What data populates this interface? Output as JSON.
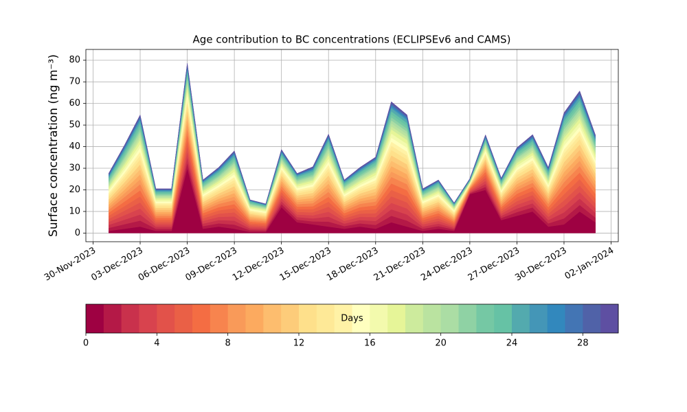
{
  "chart_data": {
    "type": "stacked_area",
    "title": "Age contribution to BC concentrations (ECLIPSEv6 and CAMS)",
    "y_label": "Surface concentration (ng m⁻³)",
    "x": [
      "2023-12-01",
      "2023-12-02",
      "2023-12-03",
      "2023-12-04",
      "2023-12-05",
      "2023-12-06",
      "2023-12-07",
      "2023-12-08",
      "2023-12-09",
      "2023-12-10",
      "2023-12-11",
      "2023-12-12",
      "2023-12-13",
      "2023-12-14",
      "2023-12-15",
      "2023-12-16",
      "2023-12-17",
      "2023-12-18",
      "2023-12-19",
      "2023-12-20",
      "2023-12-21",
      "2023-12-22",
      "2023-12-23",
      "2023-12-24",
      "2023-12-25",
      "2023-12-26",
      "2023-12-27",
      "2023-12-28",
      "2023-12-29",
      "2023-12-30",
      "2023-12-31",
      "2024-01-01"
    ],
    "xlim": [
      "2023-11-29T13:00",
      "2024-01-02T11:00"
    ],
    "xticks": [
      {
        "value": "2023-11-30",
        "label": "30-Nov-2023"
      },
      {
        "value": "2023-12-03",
        "label": "03-Dec-2023"
      },
      {
        "value": "2023-12-06",
        "label": "06-Dec-2023"
      },
      {
        "value": "2023-12-09",
        "label": "09-Dec-2023"
      },
      {
        "value": "2023-12-12",
        "label": "12-Dec-2023"
      },
      {
        "value": "2023-12-15",
        "label": "15-Dec-2023"
      },
      {
        "value": "2023-12-18",
        "label": "18-Dec-2023"
      },
      {
        "value": "2023-12-21",
        "label": "21-Dec-2023"
      },
      {
        "value": "2023-12-24",
        "label": "24-Dec-2023"
      },
      {
        "value": "2023-12-27",
        "label": "27-Dec-2023"
      },
      {
        "value": "2023-12-30",
        "label": "30-Dec-2023"
      },
      {
        "value": "2024-01-02",
        "label": "02-Jan-2024"
      }
    ],
    "ylim": [
      -4,
      85
    ],
    "yticks": [
      0,
      10,
      20,
      30,
      40,
      50,
      60,
      70,
      80
    ],
    "grid": true,
    "series": [
      {
        "color": "#9e0142",
        "values": [
          1,
          2,
          3,
          1,
          1,
          30,
          2,
          3,
          2,
          0.5,
          0.5,
          12,
          5,
          4,
          3,
          2,
          3,
          2,
          5,
          3,
          1,
          2,
          1,
          18,
          20,
          6,
          8,
          10,
          3,
          4,
          10,
          5
        ]
      },
      {
        "color": "#b41947",
        "values": [
          1.4,
          2.1,
          2.8,
          1.0,
          1.0,
          2.6,
          1.2,
          1.5,
          1.9,
          0.8,
          0.7,
          1.4,
          1.2,
          1.4,
          2.3,
          1.2,
          1.5,
          1.8,
          3.0,
          2.8,
          1.0,
          1.2,
          0.7,
          0.4,
          1.4,
          1.0,
          1.7,
          1.9,
          1.5,
          2.8,
          3.0,
          2.2
        ]
      },
      {
        "color": "#c9314c",
        "values": [
          1.4,
          2.1,
          2.8,
          1.0,
          1.0,
          2.6,
          1.2,
          1.5,
          1.9,
          0.8,
          0.7,
          1.4,
          1.2,
          1.4,
          2.3,
          1.2,
          1.5,
          1.8,
          3.0,
          2.8,
          1.0,
          1.2,
          0.7,
          0.4,
          1.4,
          1.0,
          1.7,
          1.9,
          1.5,
          2.8,
          3.0,
          2.2
        ]
      },
      {
        "color": "#d8434e",
        "values": [
          1.4,
          2.1,
          2.8,
          1.0,
          1.0,
          2.6,
          1.2,
          1.5,
          1.9,
          0.8,
          0.7,
          1.4,
          1.2,
          1.4,
          2.3,
          1.2,
          1.5,
          1.8,
          3.0,
          2.8,
          1.0,
          1.2,
          0.7,
          0.4,
          1.4,
          1.0,
          1.7,
          1.9,
          1.5,
          2.8,
          3.0,
          2.2
        ]
      },
      {
        "color": "#e2524a",
        "values": [
          1.4,
          2.1,
          2.8,
          1.0,
          1.0,
          2.6,
          1.2,
          1.5,
          1.9,
          0.8,
          0.7,
          1.4,
          1.2,
          1.4,
          2.3,
          1.2,
          1.5,
          1.8,
          3.0,
          2.8,
          1.0,
          1.2,
          0.7,
          0.4,
          1.4,
          1.0,
          1.7,
          1.9,
          1.5,
          2.8,
          3.0,
          2.2
        ]
      },
      {
        "color": "#ea6046",
        "values": [
          1.4,
          2.1,
          2.8,
          1.0,
          1.0,
          2.6,
          1.2,
          1.5,
          1.9,
          0.8,
          0.7,
          1.4,
          1.2,
          1.4,
          2.3,
          1.2,
          1.5,
          1.8,
          3.0,
          2.8,
          1.0,
          1.2,
          0.7,
          0.4,
          1.4,
          1.0,
          1.7,
          1.9,
          1.5,
          2.8,
          3.0,
          2.2
        ]
      },
      {
        "color": "#f46d43",
        "values": [
          1.4,
          2.1,
          2.8,
          1.0,
          1.0,
          2.6,
          1.2,
          1.5,
          1.9,
          0.8,
          0.7,
          1.4,
          1.2,
          1.4,
          2.3,
          1.2,
          1.5,
          1.8,
          3.0,
          2.8,
          1.0,
          1.2,
          0.7,
          0.4,
          1.4,
          1.0,
          1.7,
          1.9,
          1.5,
          2.8,
          3.0,
          2.2
        ]
      },
      {
        "color": "#f7844e",
        "values": [
          1.4,
          2.1,
          2.8,
          1.0,
          1.0,
          2.6,
          1.2,
          1.5,
          1.9,
          0.8,
          0.7,
          1.4,
          1.2,
          1.4,
          2.3,
          1.2,
          1.5,
          1.8,
          3.0,
          2.8,
          1.0,
          1.2,
          0.7,
          0.4,
          1.4,
          1.0,
          1.7,
          1.9,
          1.5,
          2.8,
          3.0,
          2.2
        ]
      },
      {
        "color": "#f99a59",
        "values": [
          1.2,
          1.7,
          2.3,
          0.9,
          0.9,
          2.2,
          1.0,
          1.2,
          1.6,
          0.7,
          0.6,
          1.2,
          1.0,
          1.2,
          1.9,
          1.0,
          1.2,
          1.5,
          2.5,
          2.3,
          0.9,
          1.0,
          0.6,
          0.3,
          1.1,
          0.9,
          1.4,
          1.6,
          1.2,
          2.3,
          2.5,
          1.8
        ]
      },
      {
        "color": "#fcaa5f",
        "values": [
          1.2,
          1.7,
          2.3,
          0.9,
          0.9,
          2.2,
          1.0,
          1.2,
          1.6,
          0.7,
          0.6,
          1.2,
          1.0,
          1.2,
          1.9,
          1.0,
          1.2,
          1.5,
          2.5,
          2.3,
          0.9,
          1.0,
          0.6,
          0.3,
          1.1,
          0.9,
          1.4,
          1.6,
          1.2,
          2.3,
          2.5,
          1.8
        ]
      },
      {
        "color": "#fdbd6e",
        "values": [
          1.2,
          1.7,
          2.3,
          0.9,
          0.9,
          2.2,
          1.0,
          1.2,
          1.6,
          0.7,
          0.6,
          1.2,
          1.0,
          1.2,
          1.9,
          1.0,
          1.2,
          1.5,
          2.5,
          2.3,
          0.9,
          1.0,
          0.6,
          0.3,
          1.1,
          0.9,
          1.4,
          1.6,
          1.2,
          2.3,
          2.5,
          1.8
        ]
      },
      {
        "color": "#fdcc7a",
        "values": [
          1.2,
          1.7,
          2.3,
          0.9,
          0.9,
          2.2,
          1.0,
          1.2,
          1.6,
          0.7,
          0.6,
          1.2,
          1.0,
          1.2,
          1.9,
          1.0,
          1.2,
          1.5,
          2.5,
          2.3,
          0.9,
          1.0,
          0.6,
          0.3,
          1.1,
          0.9,
          1.4,
          1.6,
          1.2,
          2.3,
          2.5,
          1.8
        ]
      },
      {
        "color": "#fee08b",
        "values": [
          1.2,
          1.7,
          2.3,
          0.9,
          0.9,
          2.2,
          1.0,
          1.2,
          1.6,
          0.7,
          0.6,
          1.2,
          1.0,
          1.2,
          1.9,
          1.0,
          1.2,
          1.5,
          2.5,
          2.3,
          0.9,
          1.0,
          0.6,
          0.3,
          1.1,
          0.9,
          1.4,
          1.6,
          1.2,
          2.3,
          2.5,
          1.8
        ]
      },
      {
        "color": "#fee997",
        "values": [
          0.9,
          1.3,
          1.8,
          0.7,
          0.7,
          1.7,
          0.8,
          0.9,
          1.3,
          0.5,
          0.5,
          0.9,
          0.8,
          0.9,
          1.5,
          0.8,
          0.9,
          1.2,
          1.9,
          1.8,
          0.7,
          0.8,
          0.5,
          0.2,
          0.9,
          0.7,
          1.1,
          1.2,
          0.9,
          1.8,
          1.9,
          1.4
        ]
      },
      {
        "color": "#fff2a6",
        "values": [
          0.9,
          1.3,
          1.8,
          0.7,
          0.7,
          1.7,
          0.8,
          0.9,
          1.3,
          0.5,
          0.5,
          0.9,
          0.8,
          0.9,
          1.5,
          0.8,
          0.9,
          1.2,
          1.9,
          1.8,
          0.7,
          0.8,
          0.5,
          0.2,
          0.9,
          0.7,
          1.1,
          1.2,
          0.9,
          1.8,
          1.9,
          1.4
        ]
      },
      {
        "color": "#ffffbf",
        "values": [
          0.9,
          1.3,
          1.8,
          0.7,
          0.7,
          1.7,
          0.8,
          0.9,
          1.3,
          0.5,
          0.5,
          0.9,
          0.8,
          0.9,
          1.5,
          0.8,
          0.9,
          1.2,
          1.9,
          1.8,
          0.7,
          0.8,
          0.5,
          0.2,
          0.9,
          0.7,
          1.1,
          1.2,
          0.9,
          1.8,
          1.9,
          1.4
        ]
      },
      {
        "color": "#f3faad",
        "values": [
          0.9,
          1.3,
          1.8,
          0.7,
          0.7,
          1.7,
          0.8,
          0.9,
          1.3,
          0.5,
          0.5,
          0.9,
          0.8,
          0.9,
          1.5,
          0.8,
          0.9,
          1.2,
          1.9,
          1.8,
          0.7,
          0.8,
          0.5,
          0.2,
          0.9,
          0.7,
          1.1,
          1.2,
          0.9,
          1.8,
          1.9,
          1.4
        ]
      },
      {
        "color": "#e6f598",
        "values": [
          0.9,
          1.3,
          1.8,
          0.7,
          0.7,
          1.7,
          0.8,
          0.9,
          1.3,
          0.5,
          0.5,
          0.9,
          0.8,
          0.9,
          1.5,
          0.8,
          0.9,
          1.2,
          1.9,
          1.8,
          0.7,
          0.8,
          0.5,
          0.2,
          0.9,
          0.7,
          1.1,
          1.2,
          0.9,
          1.8,
          1.9,
          1.4
        ]
      },
      {
        "color": "#cdeb9d",
        "values": [
          0.7,
          1.0,
          1.3,
          0.5,
          0.5,
          1.2,
          0.6,
          0.7,
          0.9,
          0.4,
          0.3,
          0.7,
          0.6,
          0.7,
          1.1,
          0.6,
          0.7,
          0.8,
          1.4,
          1.3,
          0.5,
          0.6,
          0.3,
          0.2,
          0.6,
          0.5,
          0.8,
          0.9,
          0.7,
          1.3,
          1.4,
          1.0
        ]
      },
      {
        "color": "#bae3a0",
        "values": [
          0.7,
          1.0,
          1.3,
          0.5,
          0.5,
          1.2,
          0.6,
          0.7,
          0.9,
          0.4,
          0.3,
          0.7,
          0.6,
          0.7,
          1.1,
          0.6,
          0.7,
          0.8,
          1.4,
          1.3,
          0.5,
          0.6,
          0.3,
          0.2,
          0.6,
          0.5,
          0.8,
          0.9,
          0.7,
          1.3,
          1.4,
          1.0
        ]
      },
      {
        "color": "#abdda4",
        "values": [
          0.7,
          1.0,
          1.3,
          0.5,
          0.5,
          1.2,
          0.6,
          0.7,
          0.9,
          0.4,
          0.3,
          0.7,
          0.6,
          0.7,
          1.1,
          0.6,
          0.7,
          0.8,
          1.4,
          1.3,
          0.5,
          0.6,
          0.3,
          0.2,
          0.6,
          0.5,
          0.8,
          0.9,
          0.7,
          1.3,
          1.4,
          1.0
        ]
      },
      {
        "color": "#8fd2a4",
        "values": [
          0.7,
          1.0,
          1.3,
          0.5,
          0.5,
          1.2,
          0.6,
          0.7,
          0.9,
          0.4,
          0.3,
          0.7,
          0.6,
          0.7,
          1.1,
          0.6,
          0.7,
          0.8,
          1.4,
          1.3,
          0.5,
          0.6,
          0.3,
          0.2,
          0.6,
          0.5,
          0.8,
          0.9,
          0.7,
          1.3,
          1.4,
          1.0
        ]
      },
      {
        "color": "#75c8a4",
        "values": [
          0.7,
          1.0,
          1.3,
          0.5,
          0.5,
          1.2,
          0.6,
          0.7,
          0.9,
          0.4,
          0.3,
          0.7,
          0.6,
          0.7,
          1.1,
          0.6,
          0.7,
          0.8,
          1.4,
          1.3,
          0.5,
          0.6,
          0.3,
          0.2,
          0.6,
          0.5,
          0.8,
          0.9,
          0.7,
          1.3,
          1.4,
          1.0
        ]
      },
      {
        "color": "#66c2a5",
        "values": [
          0.7,
          1.0,
          1.3,
          0.5,
          0.5,
          1.2,
          0.6,
          0.7,
          0.9,
          0.4,
          0.3,
          0.7,
          0.6,
          0.7,
          1.1,
          0.6,
          0.7,
          0.8,
          1.4,
          1.3,
          0.5,
          0.6,
          0.3,
          0.2,
          0.6,
          0.5,
          0.8,
          0.9,
          0.7,
          1.3,
          1.4,
          1.0
        ]
      },
      {
        "color": "#53aaae",
        "values": [
          0.7,
          1.0,
          1.3,
          0.5,
          0.5,
          1.2,
          0.6,
          0.7,
          0.9,
          0.4,
          0.3,
          0.7,
          0.6,
          0.7,
          1.1,
          0.6,
          0.7,
          0.8,
          1.4,
          1.3,
          0.5,
          0.6,
          0.3,
          0.2,
          0.6,
          0.5,
          0.8,
          0.9,
          0.7,
          1.3,
          1.4,
          1.0
        ]
      },
      {
        "color": "#4496b7",
        "values": [
          0.3,
          0.4,
          0.5,
          0.2,
          0.2,
          0.5,
          0.2,
          0.3,
          0.4,
          0.1,
          0.1,
          0.3,
          0.2,
          0.3,
          0.4,
          0.2,
          0.3,
          0.3,
          0.6,
          0.5,
          0.2,
          0.2,
          0.1,
          0.1,
          0.3,
          0.2,
          0.3,
          0.4,
          0.3,
          0.5,
          0.6,
          0.4
        ]
      },
      {
        "color": "#3288bd",
        "values": [
          0.3,
          0.4,
          0.5,
          0.2,
          0.2,
          0.5,
          0.2,
          0.3,
          0.4,
          0.1,
          0.1,
          0.3,
          0.2,
          0.3,
          0.4,
          0.2,
          0.3,
          0.3,
          0.6,
          0.5,
          0.2,
          0.2,
          0.1,
          0.1,
          0.3,
          0.2,
          0.3,
          0.4,
          0.3,
          0.5,
          0.6,
          0.4
        ]
      },
      {
        "color": "#4375b4",
        "values": [
          0.3,
          0.4,
          0.5,
          0.2,
          0.2,
          0.5,
          0.2,
          0.3,
          0.4,
          0.1,
          0.1,
          0.3,
          0.2,
          0.3,
          0.4,
          0.2,
          0.3,
          0.3,
          0.6,
          0.5,
          0.2,
          0.2,
          0.1,
          0.1,
          0.3,
          0.2,
          0.3,
          0.4,
          0.3,
          0.5,
          0.6,
          0.4
        ]
      },
      {
        "color": "#5062a8",
        "values": [
          0.3,
          0.4,
          0.5,
          0.2,
          0.2,
          0.5,
          0.2,
          0.3,
          0.4,
          0.1,
          0.1,
          0.3,
          0.2,
          0.3,
          0.4,
          0.2,
          0.3,
          0.3,
          0.6,
          0.5,
          0.2,
          0.2,
          0.1,
          0.1,
          0.3,
          0.2,
          0.3,
          0.4,
          0.3,
          0.5,
          0.6,
          0.4
        ]
      },
      {
        "color": "#5e4fa2",
        "values": [
          0.3,
          0.4,
          0.5,
          0.2,
          0.2,
          0.5,
          0.2,
          0.3,
          0.4,
          0.1,
          0.1,
          0.3,
          0.2,
          0.3,
          0.4,
          0.2,
          0.3,
          0.3,
          0.6,
          0.5,
          0.2,
          0.2,
          0.1,
          0.1,
          0.3,
          0.2,
          0.3,
          0.4,
          0.3,
          0.5,
          0.6,
          0.4
        ]
      }
    ],
    "colorbar": {
      "label": "Days",
      "lim": [
        0,
        30
      ],
      "ticks": [
        0,
        4,
        8,
        12,
        16,
        20,
        24,
        28
      ]
    }
  }
}
